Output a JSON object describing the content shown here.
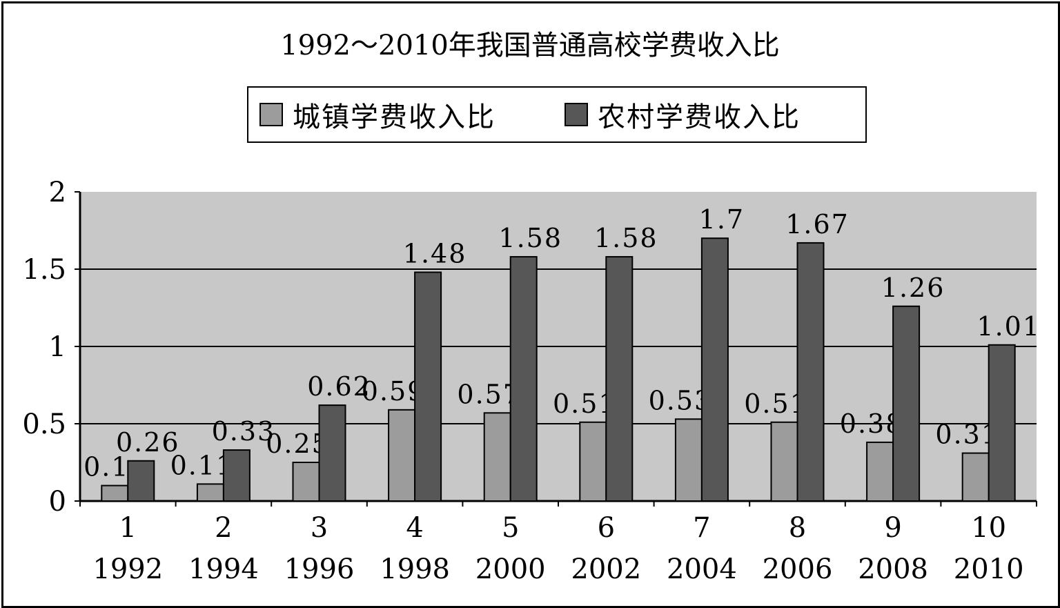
{
  "chart_data": {
    "type": "bar",
    "title": "1992～2010年我国普通高校学费收入比",
    "categories": [
      "1",
      "2",
      "3",
      "4",
      "5",
      "6",
      "7",
      "8",
      "9",
      "10"
    ],
    "years": [
      "1992",
      "1994",
      "1996",
      "1998",
      "2000",
      "2002",
      "2004",
      "2006",
      "2008",
      "2010"
    ],
    "series": [
      {
        "name": "城镇学费收入比",
        "color": "#9c9c9c",
        "values": [
          0.1,
          0.11,
          0.25,
          0.59,
          0.57,
          0.51,
          0.53,
          0.51,
          0.38,
          0.31
        ]
      },
      {
        "name": "农村学费收入比",
        "color": "#575757",
        "values": [
          0.26,
          0.33,
          0.62,
          1.48,
          1.58,
          1.58,
          1.7,
          1.67,
          1.26,
          1.01
        ]
      }
    ],
    "ylim": [
      0,
      2
    ],
    "yticks": [
      "0",
      "0.5",
      "1",
      "1.5",
      "2"
    ],
    "grid": true,
    "legend_position": "top",
    "plot_background": "#c8c8c8"
  }
}
